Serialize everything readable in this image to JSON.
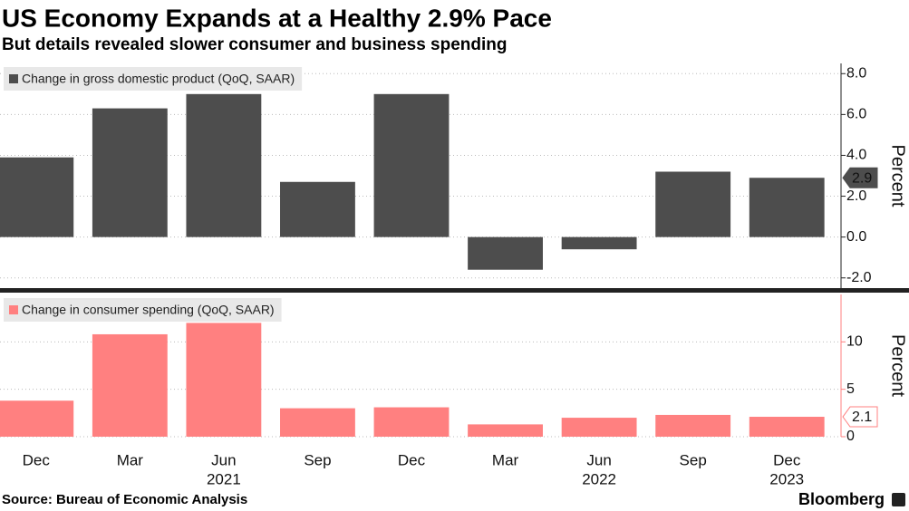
{
  "title": "US Economy Expands at a Healthy 2.9% Pace",
  "subtitle": "But details revealed slower consumer and business spending",
  "source": "Source: Bureau of Economic Analysis",
  "brand": "Bloomberg",
  "chart_data": [
    {
      "type": "bar",
      "legend": "top-left",
      "grid": true,
      "y_label": "Percent",
      "series": [
        {
          "name": "Change in gross domestic product (QoQ, SAAR)",
          "color": "#4d4d4d",
          "values": [
            3.9,
            6.3,
            7.0,
            2.7,
            7.0,
            -1.6,
            -0.6,
            3.2,
            2.9
          ]
        }
      ],
      "ylim": [
        -2.5,
        8.5
      ],
      "yticks": [
        {
          "value": -2,
          "label": "-2.0"
        },
        {
          "value": 0,
          "label": "0.0"
        },
        {
          "value": 2,
          "label": "2.0"
        },
        {
          "value": 4,
          "label": "4.0"
        },
        {
          "value": 6,
          "label": "6.0"
        },
        {
          "value": 8,
          "label": "8.0"
        }
      ]
    },
    {
      "type": "bar",
      "legend": "top-left",
      "grid": true,
      "y_label": "Percent",
      "categories": [
        "Dec",
        "Mar",
        "Jun",
        "Sep",
        "Dec",
        "Mar",
        "Jun",
        "Sep",
        "Dec"
      ],
      "year_labels": [
        null,
        null,
        "2021",
        null,
        null,
        null,
        "2022",
        null,
        "2023"
      ],
      "series": [
        {
          "name": "Change in consumer spending (QoQ, SAAR)",
          "color": "#ff8080",
          "values": [
            3.8,
            10.8,
            12.0,
            3.0,
            3.1,
            1.3,
            2.0,
            2.3,
            2.1
          ]
        }
      ],
      "ylim": [
        0,
        15
      ],
      "yticks": [
        0,
        5,
        10
      ]
    }
  ]
}
